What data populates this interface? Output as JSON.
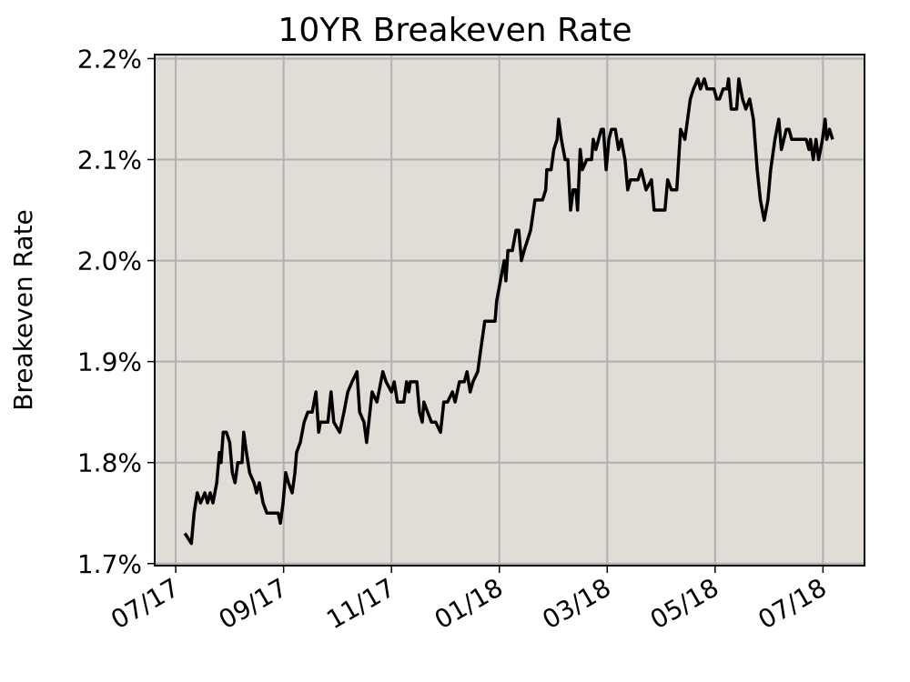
{
  "chart_data": {
    "type": "line",
    "title": "10YR Breakeven Rate",
    "ylabel": "Breakeven Rate",
    "x": [
      0.17,
      0.29,
      0.34,
      0.4,
      0.46,
      0.54,
      0.59,
      0.64,
      0.69,
      0.76,
      0.81,
      0.84,
      0.88,
      0.94,
      1.0,
      1.05,
      1.1,
      1.15,
      1.23,
      1.26,
      1.31,
      1.37,
      1.45,
      1.5,
      1.55,
      1.62,
      1.69,
      1.8,
      1.9,
      1.94,
      1.99,
      2.04,
      2.09,
      2.16,
      2.21,
      2.24,
      2.31,
      2.38,
      2.45,
      2.53,
      2.6,
      2.65,
      2.68,
      2.82,
      2.88,
      2.93,
      3.04,
      3.12,
      3.19,
      3.27,
      3.36,
      3.41,
      3.49,
      3.54,
      3.58,
      3.64,
      3.73,
      3.84,
      3.9,
      4.0,
      4.05,
      4.11,
      4.23,
      4.28,
      4.32,
      4.35,
      4.47,
      4.52,
      4.57,
      4.6,
      4.67,
      4.74,
      4.82,
      4.91,
      4.97,
      5.04,
      5.13,
      5.18,
      5.26,
      5.35,
      5.4,
      5.46,
      5.51,
      5.6,
      5.65,
      5.73,
      5.82,
      5.92,
      5.95,
      6.02,
      6.09,
      6.12,
      6.16,
      6.24,
      6.31,
      6.36,
      6.41,
      6.46,
      6.58,
      6.66,
      6.8,
      6.86,
      6.88,
      6.96,
      7.01,
      7.07,
      7.1,
      7.15,
      7.22,
      7.27,
      7.32,
      7.37,
      7.42,
      7.45,
      7.5,
      7.54,
      7.62,
      7.71,
      7.74,
      7.79,
      7.84,
      7.89,
      7.93,
      7.98,
      8.03,
      8.08,
      8.15,
      8.21,
      8.26,
      8.33,
      8.38,
      8.43,
      8.57,
      8.63,
      8.72,
      8.82,
      8.87,
      9.01,
      9.07,
      9.12,
      9.19,
      9.29,
      9.36,
      9.44,
      9.54,
      9.6,
      9.68,
      9.73,
      9.8,
      9.85,
      9.98,
      10.03,
      10.08,
      10.15,
      10.22,
      10.25,
      10.3,
      10.4,
      10.44,
      10.51,
      10.57,
      10.64,
      10.71,
      10.78,
      10.84,
      10.91,
      10.98,
      11.03,
      11.11,
      11.18,
      11.23,
      11.32,
      11.37,
      11.42,
      11.59,
      11.69,
      11.74,
      11.77,
      11.82,
      11.87,
      11.92,
      11.99,
      12.04,
      12.07,
      12.12,
      12.18
    ],
    "series": [
      {
        "color": "#000000",
        "values": [
          1.73,
          1.72,
          1.75,
          1.77,
          1.76,
          1.77,
          1.76,
          1.77,
          1.76,
          1.78,
          1.81,
          1.8,
          1.83,
          1.83,
          1.82,
          1.79,
          1.78,
          1.8,
          1.8,
          1.83,
          1.81,
          1.79,
          1.78,
          1.77,
          1.78,
          1.76,
          1.75,
          1.75,
          1.75,
          1.74,
          1.76,
          1.79,
          1.78,
          1.77,
          1.79,
          1.81,
          1.82,
          1.84,
          1.85,
          1.85,
          1.87,
          1.83,
          1.84,
          1.84,
          1.87,
          1.84,
          1.83,
          1.85,
          1.87,
          1.88,
          1.89,
          1.85,
          1.84,
          1.82,
          1.84,
          1.87,
          1.86,
          1.89,
          1.88,
          1.87,
          1.88,
          1.86,
          1.86,
          1.88,
          1.87,
          1.88,
          1.88,
          1.85,
          1.84,
          1.86,
          1.85,
          1.84,
          1.84,
          1.83,
          1.86,
          1.86,
          1.87,
          1.86,
          1.88,
          1.88,
          1.89,
          1.87,
          1.88,
          1.89,
          1.91,
          1.94,
          1.94,
          1.94,
          1.96,
          1.98,
          2.0,
          1.98,
          2.01,
          2.01,
          2.03,
          2.03,
          2.0,
          2.01,
          2.03,
          2.06,
          2.06,
          2.07,
          2.09,
          2.09,
          2.11,
          2.12,
          2.14,
          2.12,
          2.1,
          2.1,
          2.05,
          2.07,
          2.07,
          2.05,
          2.11,
          2.09,
          2.1,
          2.1,
          2.12,
          2.11,
          2.12,
          2.13,
          2.13,
          2.09,
          2.12,
          2.13,
          2.13,
          2.11,
          2.12,
          2.1,
          2.07,
          2.08,
          2.08,
          2.09,
          2.07,
          2.08,
          2.05,
          2.05,
          2.05,
          2.08,
          2.07,
          2.07,
          2.13,
          2.12,
          2.16,
          2.17,
          2.18,
          2.17,
          2.18,
          2.17,
          2.17,
          2.16,
          2.16,
          2.17,
          2.17,
          2.18,
          2.15,
          2.15,
          2.18,
          2.16,
          2.15,
          2.16,
          2.14,
          2.09,
          2.06,
          2.04,
          2.06,
          2.09,
          2.12,
          2.14,
          2.11,
          2.13,
          2.13,
          2.12,
          2.12,
          2.12,
          2.11,
          2.12,
          2.1,
          2.12,
          2.1,
          2.12,
          2.14,
          2.12,
          2.13,
          2.12
        ]
      }
    ],
    "xlim": [
      -0.39,
      12.77
    ],
    "xticks": [
      {
        "value": 0,
        "label": "07/17"
      },
      {
        "value": 2,
        "label": "09/17"
      },
      {
        "value": 4,
        "label": "11/17"
      },
      {
        "value": 6,
        "label": "01/18"
      },
      {
        "value": 8,
        "label": "03/18"
      },
      {
        "value": 10,
        "label": "05/18"
      },
      {
        "value": 12,
        "label": "07/18"
      }
    ],
    "ylim": [
      1.698,
      2.204
    ],
    "yticks": [
      {
        "value": 1.7,
        "label": "1.7%"
      },
      {
        "value": 1.8,
        "label": "1.8%"
      },
      {
        "value": 1.9,
        "label": "1.9%"
      },
      {
        "value": 2.0,
        "label": "2.0%"
      },
      {
        "value": 2.1,
        "label": "2.1%"
      },
      {
        "value": 2.2,
        "label": "2.2%"
      }
    ],
    "grid": true,
    "background": "#e1ddd6"
  }
}
